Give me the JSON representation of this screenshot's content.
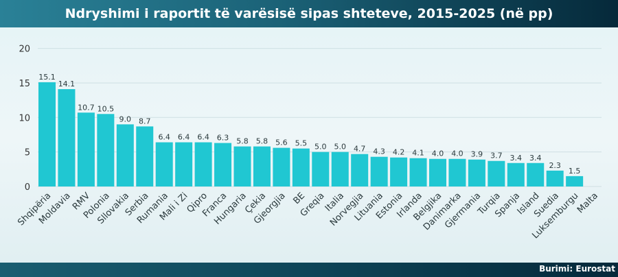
{
  "header": {
    "title": "Ndryshimi i raportit të varësisë sipas shteteve, 2015-2025 (në pp)"
  },
  "footer": {
    "source": "Burimi: Eurostat"
  },
  "colors": {
    "bar": "#20c7d2",
    "header": "#1b6277"
  },
  "chart_data": {
    "type": "bar",
    "title": "Ndryshimi i raportit të varësisë sipas shteteve, 2015-2025 (në pp)",
    "xlabel": "",
    "ylabel": "",
    "ylim": [
      0,
      20
    ],
    "yticks": [
      0,
      5,
      10,
      15,
      20
    ],
    "grid": true,
    "categories": [
      "Shqipëria",
      "Moldavia",
      "RMV",
      "Polonia",
      "Sllovakia",
      "Serbia",
      "Rumania",
      "Mali i Zi",
      "Qipro",
      "Franca",
      "Hungaria",
      "Çekia",
      "Gjeorgjia",
      "BE",
      "Greqia",
      "Italia",
      "Norvegjia",
      "Lituania",
      "Estonia",
      "Irlanda",
      "Belgjika",
      "Danimarka",
      "Gjermania",
      "Turqia",
      "Spanja",
      "Island",
      "Suedia",
      "Luksemburgu",
      "Malta"
    ],
    "values": [
      15.1,
      14.1,
      10.7,
      10.5,
      9.0,
      8.7,
      6.4,
      6.4,
      6.4,
      6.3,
      5.8,
      5.8,
      5.6,
      5.5,
      5.0,
      5.0,
      4.7,
      4.3,
      4.2,
      4.1,
      4.0,
      4.0,
      3.9,
      3.7,
      3.4,
      3.4,
      2.3,
      1.5,
      null
    ]
  }
}
